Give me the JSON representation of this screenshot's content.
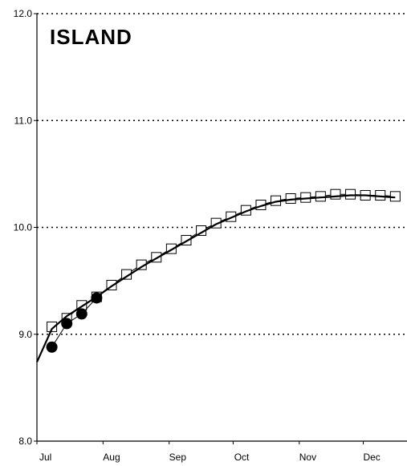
{
  "chart_data": {
    "type": "line",
    "title": "ISLAND",
    "xlabel": "",
    "ylabel": "",
    "ylim": [
      8.0,
      12.0
    ],
    "xlim": [
      0,
      169
    ],
    "yticks": [
      "8.0",
      "9.0",
      "10.0",
      "11.0",
      "12.0"
    ],
    "xticks": [
      {
        "label": "Jul",
        "x": 0
      },
      {
        "label": "Aug",
        "x": 31
      },
      {
        "label": "Sep",
        "x": 62
      },
      {
        "label": "Oct",
        "x": 92
      },
      {
        "label": "Nov",
        "x": 123
      },
      {
        "label": "Dec",
        "x": 153
      }
    ],
    "grid": "horizontal-dotted",
    "series": [
      {
        "name": "",
        "marker": "open-square",
        "x": [
          7,
          14,
          21,
          28,
          35,
          42,
          49,
          56,
          63,
          70,
          77,
          84,
          91,
          98,
          105,
          112,
          119,
          126,
          133,
          140,
          147,
          154,
          161,
          168
        ],
        "y": [
          9.07,
          9.15,
          9.27,
          9.35,
          9.46,
          9.56,
          9.65,
          9.72,
          9.8,
          9.88,
          9.97,
          10.04,
          10.1,
          10.16,
          10.21,
          10.25,
          10.27,
          10.28,
          10.29,
          10.31,
          10.31,
          10.3,
          10.3,
          10.29
        ]
      },
      {
        "name": "",
        "marker": "filled-circle",
        "x": [
          7,
          14,
          21,
          28
        ],
        "y": [
          8.88,
          9.1,
          9.19,
          9.34
        ]
      },
      {
        "name": "",
        "marker": "none",
        "style": "fitted-curve",
        "x": [
          0,
          7,
          14,
          21,
          28,
          35,
          42,
          49,
          56,
          63,
          70,
          77,
          84,
          91,
          98,
          105,
          112,
          119,
          126,
          133,
          140,
          147,
          154,
          161,
          168
        ],
        "y": [
          8.74,
          9.05,
          9.17,
          9.26,
          9.35,
          9.45,
          9.54,
          9.63,
          9.71,
          9.79,
          9.87,
          9.95,
          10.03,
          10.09,
          10.15,
          10.2,
          10.24,
          10.26,
          10.27,
          10.28,
          10.29,
          10.3,
          10.3,
          10.29,
          10.28
        ]
      }
    ]
  }
}
